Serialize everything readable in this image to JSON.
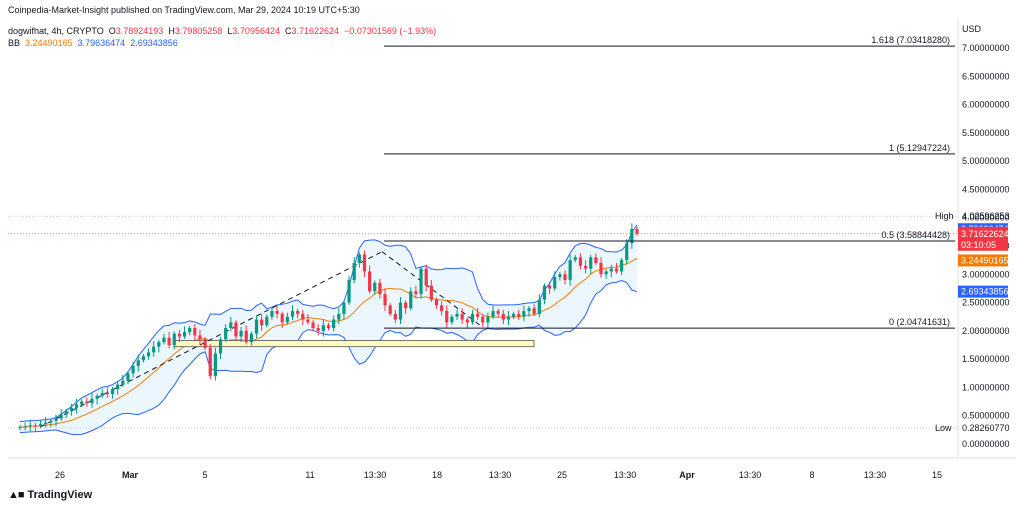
{
  "header": {
    "published": "Coinpedia-Market-Insight published on TradingView.com, Mar 29, 2024 10:19 UTC+5:30"
  },
  "legend": {
    "symbol": "dogwifhat, 4h, CRYPTO",
    "open_label": "O",
    "open": "3.78924193",
    "high_label": "H",
    "high": "3.79805258",
    "low_label": "L",
    "low": "3.70956424",
    "close_label": "C",
    "close": "3.71622624",
    "change": "−0.07301569 (−1.93%)",
    "bb_label": "BB",
    "bb_basis": "3.24490165",
    "bb_upper": "3.79636474",
    "bb_lower": "2.69343856"
  },
  "currency": "USD",
  "footer": {
    "brand": "TradingView"
  },
  "price_labels": {
    "high_tag": "High",
    "high_value": "4.02596253",
    "bb_upper": "3.79636474",
    "last_price": "3.71622624",
    "countdown": "03:10:05",
    "bb_basis": "3.24490165",
    "bb_lower": "2.69343856",
    "low_tag": "Low",
    "low_value": "0.28260770"
  },
  "colors": {
    "up": "#089981",
    "down": "#f23645",
    "bb_band": "#2962ff",
    "bb_basis": "#f57c00",
    "bb_fill": "#e3f2fd"
  },
  "chart_data": {
    "type": "candlestick",
    "y_axis": {
      "min": 0.0,
      "max": 7.0,
      "ticks": [
        "0.00000000",
        "0.50000000",
        "1.00000000",
        "1.50000000",
        "2.00000000",
        "2.50000000",
        "3.00000000",
        "3.50000000",
        "4.00000000",
        "4.50000000",
        "5.00000000",
        "5.50000000",
        "6.00000000",
        "6.50000000",
        "7.00000000"
      ]
    },
    "x_axis": {
      "ticks": [
        "26",
        "Mar",
        "5",
        "11",
        "13:30",
        "18",
        "13:30",
        "25",
        "13:30",
        "Apr",
        "13:30",
        "8",
        "13:30",
        "15"
      ]
    },
    "fibonacci": [
      {
        "label": "1.618 (7.03418280)",
        "value": 7.0342
      },
      {
        "label": "1 (5.12947224)",
        "value": 5.1295
      },
      {
        "label": "0.5 (3.58844428)",
        "value": 3.5884
      },
      {
        "label": "0 (2.04741631)",
        "value": 2.0474
      }
    ],
    "high": 4.026,
    "low": 0.2826,
    "last": 3.7162,
    "support_zone": [
      1.72,
      1.83
    ],
    "candles_close": [
      0.3,
      0.31,
      0.33,
      0.32,
      0.35,
      0.38,
      0.41,
      0.45,
      0.52,
      0.58,
      0.64,
      0.7,
      0.75,
      0.72,
      0.8,
      0.85,
      0.9,
      0.88,
      0.97,
      1.05,
      1.12,
      1.25,
      1.38,
      1.48,
      1.55,
      1.62,
      1.72,
      1.8,
      1.88,
      1.75,
      1.95,
      1.9,
      1.98,
      2.05,
      1.92,
      1.85,
      1.7,
      1.2,
      1.6,
      1.85,
      2.05,
      2.15,
      1.9,
      2.0,
      1.8,
      1.95,
      2.2,
      2.1,
      2.25,
      2.35,
      2.3,
      2.15,
      2.25,
      2.35,
      2.3,
      2.2,
      2.15,
      2.05,
      2.0,
      2.1,
      2.05,
      2.2,
      2.3,
      2.5,
      2.9,
      3.2,
      3.35,
      3.05,
      2.7,
      2.85,
      2.65,
      2.45,
      2.3,
      2.2,
      2.5,
      2.4,
      2.7,
      2.65,
      3.1,
      2.8,
      2.55,
      2.45,
      2.35,
      2.15,
      2.25,
      2.3,
      2.2,
      2.15,
      2.3,
      2.25,
      2.15,
      2.25,
      2.35,
      2.3,
      2.2,
      2.25,
      2.3,
      2.25,
      2.35,
      2.4,
      2.3,
      2.55,
      2.8,
      2.75,
      2.95,
      3.0,
      2.9,
      3.25,
      3.3,
      3.15,
      3.1,
      3.3,
      3.2,
      3.0,
      3.05,
      3.1,
      3.05,
      3.25,
      3.55,
      3.8,
      3.72
    ]
  }
}
